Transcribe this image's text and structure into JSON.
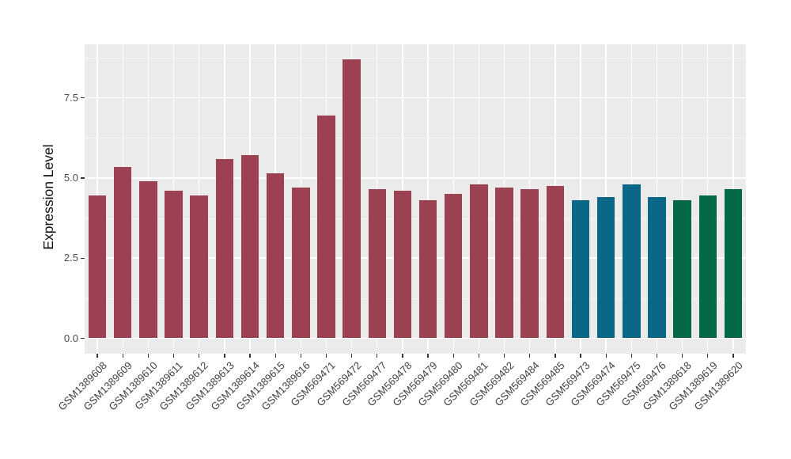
{
  "chart_data": {
    "type": "bar",
    "title": "",
    "xlabel": "",
    "ylabel": "Expression Level",
    "categories": [
      "GSM1389608",
      "GSM1389609",
      "GSM1389610",
      "GSM1389611",
      "GSM1389612",
      "GSM1389613",
      "GSM1389614",
      "GSM1389615",
      "GSM1389616",
      "GSM569471",
      "GSM569472",
      "GSM569477",
      "GSM569478",
      "GSM569479",
      "GSM569480",
      "GSM569481",
      "GSM569482",
      "GSM569484",
      "GSM569485",
      "GSM569473",
      "GSM569474",
      "GSM569475",
      "GSM569476",
      "GSM1389618",
      "GSM1389619",
      "GSM1389620"
    ],
    "values": [
      4.45,
      5.35,
      4.9,
      4.6,
      4.45,
      5.6,
      5.7,
      5.15,
      4.7,
      6.95,
      8.7,
      4.65,
      4.6,
      4.3,
      4.5,
      4.8,
      4.7,
      4.65,
      4.75,
      4.3,
      4.4,
      4.8,
      4.4,
      4.3,
      4.45,
      4.65
    ],
    "groups": [
      "maroon",
      "maroon",
      "maroon",
      "maroon",
      "maroon",
      "maroon",
      "maroon",
      "maroon",
      "maroon",
      "maroon",
      "maroon",
      "maroon",
      "maroon",
      "maroon",
      "maroon",
      "maroon",
      "maroon",
      "maroon",
      "maroon",
      "teal",
      "teal",
      "teal",
      "teal",
      "green",
      "green",
      "green"
    ],
    "group_colors": {
      "maroon": "#9c4151",
      "teal": "#0b6788",
      "green": "#026847"
    },
    "yticks": [
      0,
      2.5,
      5,
      7.5
    ],
    "ytick_labels": [
      "0.0",
      "2.5",
      "5.0",
      "7.5"
    ],
    "ylim": [
      0,
      9.16
    ],
    "grid": true,
    "legend": "none",
    "panel_bg": "#ebebeb",
    "grid_color": "#ffffff"
  }
}
